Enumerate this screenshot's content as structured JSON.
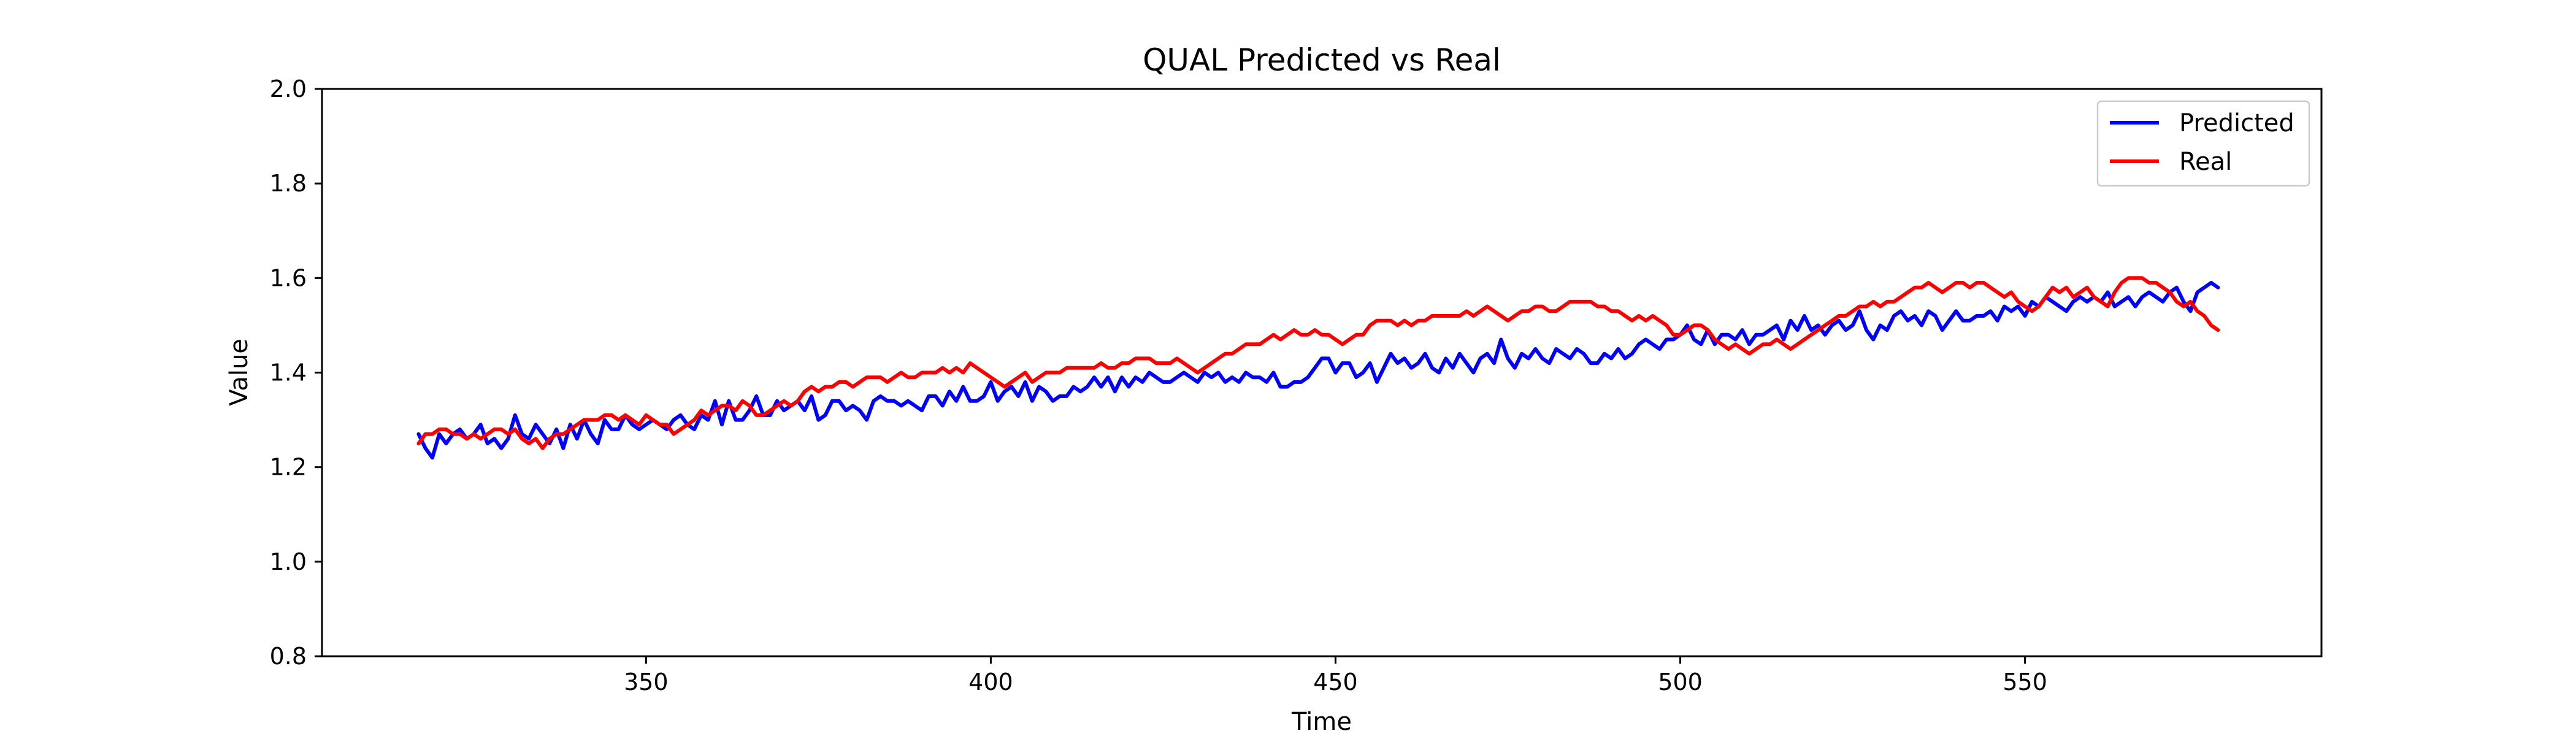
{
  "chart_data": {
    "type": "line",
    "title": "QUAL Predicted vs Real",
    "xlabel": "Time",
    "ylabel": "Value",
    "xlim": [
      303,
      593
    ],
    "ylim": [
      0.8,
      2.0
    ],
    "x_ticks": [
      350,
      400,
      450,
      500,
      550
    ],
    "y_ticks": [
      0.8,
      1.0,
      1.2,
      1.4,
      1.6,
      1.8,
      2.0
    ],
    "x_tick_labels": [
      "350",
      "400",
      "450",
      "500",
      "550"
    ],
    "y_tick_labels": [
      "0.8",
      "1.0",
      "1.2",
      "1.4",
      "1.6",
      "1.8",
      "2.0"
    ],
    "grid": false,
    "legend_position": "top-right",
    "x": {
      "start": 317,
      "end": 580,
      "step": 1
    },
    "series": [
      {
        "name": "Predicted",
        "color": "#0000ff",
        "values": [
          1.27,
          1.24,
          1.22,
          1.27,
          1.25,
          1.27,
          1.28,
          1.26,
          1.27,
          1.29,
          1.25,
          1.26,
          1.24,
          1.26,
          1.31,
          1.27,
          1.26,
          1.29,
          1.27,
          1.25,
          1.28,
          1.24,
          1.29,
          1.26,
          1.3,
          1.27,
          1.25,
          1.3,
          1.28,
          1.28,
          1.31,
          1.29,
          1.28,
          1.29,
          1.3,
          1.29,
          1.28,
          1.3,
          1.31,
          1.29,
          1.28,
          1.31,
          1.3,
          1.34,
          1.29,
          1.34,
          1.3,
          1.3,
          1.32,
          1.35,
          1.31,
          1.31,
          1.34,
          1.32,
          1.33,
          1.34,
          1.32,
          1.35,
          1.3,
          1.31,
          1.34,
          1.34,
          1.32,
          1.33,
          1.32,
          1.3,
          1.34,
          1.35,
          1.34,
          1.34,
          1.33,
          1.34,
          1.33,
          1.32,
          1.35,
          1.35,
          1.33,
          1.36,
          1.34,
          1.37,
          1.34,
          1.34,
          1.35,
          1.38,
          1.34,
          1.36,
          1.37,
          1.35,
          1.38,
          1.34,
          1.37,
          1.36,
          1.34,
          1.35,
          1.35,
          1.37,
          1.36,
          1.37,
          1.39,
          1.37,
          1.39,
          1.36,
          1.39,
          1.37,
          1.39,
          1.38,
          1.4,
          1.39,
          1.38,
          1.38,
          1.39,
          1.4,
          1.39,
          1.38,
          1.4,
          1.39,
          1.4,
          1.38,
          1.39,
          1.38,
          1.4,
          1.39,
          1.39,
          1.38,
          1.4,
          1.37,
          1.37,
          1.38,
          1.38,
          1.39,
          1.41,
          1.43,
          1.43,
          1.4,
          1.42,
          1.42,
          1.39,
          1.4,
          1.42,
          1.38,
          1.41,
          1.44,
          1.42,
          1.43,
          1.41,
          1.42,
          1.44,
          1.41,
          1.4,
          1.43,
          1.41,
          1.44,
          1.42,
          1.4,
          1.43,
          1.44,
          1.42,
          1.47,
          1.43,
          1.41,
          1.44,
          1.43,
          1.45,
          1.43,
          1.42,
          1.45,
          1.44,
          1.43,
          1.45,
          1.44,
          1.42,
          1.42,
          1.44,
          1.43,
          1.45,
          1.43,
          1.44,
          1.46,
          1.47,
          1.46,
          1.45,
          1.47,
          1.47,
          1.48,
          1.5,
          1.47,
          1.46,
          1.49,
          1.46,
          1.48,
          1.48,
          1.47,
          1.49,
          1.46,
          1.48,
          1.48,
          1.49,
          1.5,
          1.47,
          1.51,
          1.49,
          1.52,
          1.49,
          1.5,
          1.48,
          1.5,
          1.51,
          1.49,
          1.5,
          1.53,
          1.49,
          1.47,
          1.5,
          1.49,
          1.52,
          1.53,
          1.51,
          1.52,
          1.5,
          1.53,
          1.52,
          1.49,
          1.51,
          1.53,
          1.51,
          1.51,
          1.52,
          1.52,
          1.53,
          1.51,
          1.54,
          1.53,
          1.54,
          1.52,
          1.55,
          1.54,
          1.56,
          1.55,
          1.54,
          1.53,
          1.55,
          1.56,
          1.55,
          1.56,
          1.55,
          1.57,
          1.54,
          1.55,
          1.56,
          1.54,
          1.56,
          1.57,
          1.56,
          1.55,
          1.57,
          1.58,
          1.55,
          1.53,
          1.57,
          1.58,
          1.59,
          1.58
        ]
      },
      {
        "name": "Real",
        "color": "#ff0000",
        "values": [
          1.25,
          1.27,
          1.27,
          1.28,
          1.28,
          1.27,
          1.27,
          1.26,
          1.27,
          1.26,
          1.27,
          1.28,
          1.28,
          1.27,
          1.28,
          1.26,
          1.25,
          1.26,
          1.24,
          1.26,
          1.27,
          1.27,
          1.28,
          1.29,
          1.3,
          1.3,
          1.3,
          1.31,
          1.31,
          1.3,
          1.31,
          1.3,
          1.29,
          1.31,
          1.3,
          1.29,
          1.29,
          1.27,
          1.28,
          1.29,
          1.3,
          1.32,
          1.31,
          1.32,
          1.33,
          1.33,
          1.32,
          1.34,
          1.33,
          1.31,
          1.31,
          1.32,
          1.33,
          1.34,
          1.33,
          1.34,
          1.36,
          1.37,
          1.36,
          1.37,
          1.37,
          1.38,
          1.38,
          1.37,
          1.38,
          1.39,
          1.39,
          1.39,
          1.38,
          1.39,
          1.4,
          1.39,
          1.39,
          1.4,
          1.4,
          1.4,
          1.41,
          1.4,
          1.41,
          1.4,
          1.42,
          1.41,
          1.4,
          1.39,
          1.38,
          1.37,
          1.38,
          1.39,
          1.4,
          1.38,
          1.39,
          1.4,
          1.4,
          1.4,
          1.41,
          1.41,
          1.41,
          1.41,
          1.41,
          1.42,
          1.41,
          1.41,
          1.42,
          1.42,
          1.43,
          1.43,
          1.43,
          1.42,
          1.42,
          1.42,
          1.43,
          1.42,
          1.41,
          1.4,
          1.41,
          1.42,
          1.43,
          1.44,
          1.44,
          1.45,
          1.46,
          1.46,
          1.46,
          1.47,
          1.48,
          1.47,
          1.48,
          1.49,
          1.48,
          1.48,
          1.49,
          1.48,
          1.48,
          1.47,
          1.46,
          1.47,
          1.48,
          1.48,
          1.5,
          1.51,
          1.51,
          1.51,
          1.5,
          1.51,
          1.5,
          1.51,
          1.51,
          1.52,
          1.52,
          1.52,
          1.52,
          1.52,
          1.53,
          1.52,
          1.53,
          1.54,
          1.53,
          1.52,
          1.51,
          1.52,
          1.53,
          1.53,
          1.54,
          1.54,
          1.53,
          1.53,
          1.54,
          1.55,
          1.55,
          1.55,
          1.55,
          1.54,
          1.54,
          1.53,
          1.53,
          1.52,
          1.51,
          1.52,
          1.51,
          1.52,
          1.51,
          1.5,
          1.48,
          1.48,
          1.49,
          1.5,
          1.5,
          1.49,
          1.47,
          1.46,
          1.45,
          1.46,
          1.45,
          1.44,
          1.45,
          1.46,
          1.46,
          1.47,
          1.46,
          1.45,
          1.46,
          1.47,
          1.48,
          1.49,
          1.5,
          1.51,
          1.52,
          1.52,
          1.53,
          1.54,
          1.54,
          1.55,
          1.54,
          1.55,
          1.55,
          1.56,
          1.57,
          1.58,
          1.58,
          1.59,
          1.58,
          1.57,
          1.58,
          1.59,
          1.59,
          1.58,
          1.59,
          1.59,
          1.58,
          1.57,
          1.56,
          1.57,
          1.55,
          1.54,
          1.53,
          1.54,
          1.56,
          1.58,
          1.57,
          1.58,
          1.56,
          1.57,
          1.58,
          1.56,
          1.55,
          1.54,
          1.57,
          1.59,
          1.6,
          1.6,
          1.6,
          1.59,
          1.59,
          1.58,
          1.57,
          1.55,
          1.54,
          1.55,
          1.53,
          1.52,
          1.5,
          1.49
        ]
      }
    ]
  }
}
